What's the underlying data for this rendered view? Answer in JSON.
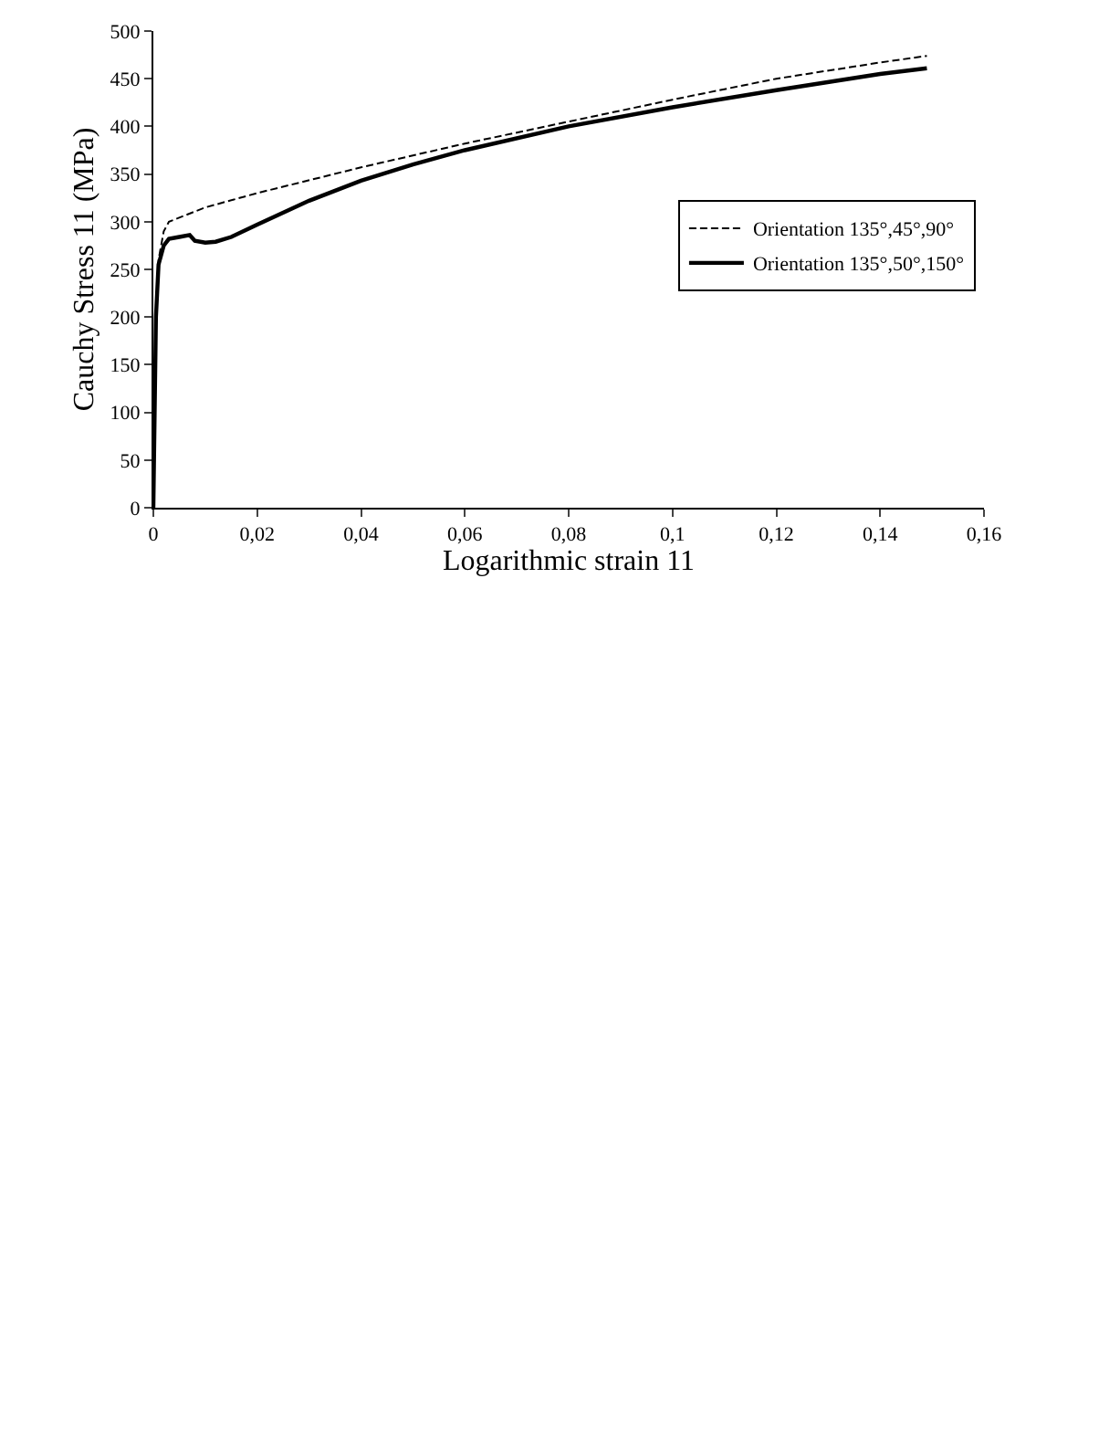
{
  "chart_data": {
    "type": "line",
    "xlabel": "Logarithmic strain 11",
    "ylabel": "Cauchy Stress 11 (MPa)",
    "xlim": [
      0,
      0.16
    ],
    "xticks": [
      0,
      {
        "value": 0.02,
        "label": "0,02"
      },
      {
        "value": 0.04,
        "label": "0,04"
      },
      {
        "value": 0.06,
        "label": "0,06"
      },
      {
        "value": 0.08,
        "label": "0,08"
      },
      {
        "value": 0.1,
        "label": "0,1"
      },
      {
        "value": 0.12,
        "label": "0,12"
      },
      {
        "value": 0.14,
        "label": "0,14"
      },
      {
        "value": 0.16,
        "label": "0,16"
      }
    ],
    "ylim": [
      0,
      500
    ],
    "yticks": [
      0,
      50,
      100,
      150,
      200,
      250,
      300,
      350,
      400,
      450,
      500
    ],
    "legend": "right",
    "marker": "none",
    "series": [
      {
        "name": "Orientation 135°,45°,90°",
        "color": "#000000",
        "line_style": "dashed",
        "x": [
          0,
          0.0005,
          0.001,
          0.002,
          0.003,
          0.01,
          0.02,
          0.04,
          0.06,
          0.08,
          0.1,
          0.12,
          0.14,
          0.149
        ],
        "values": [
          0,
          200,
          260,
          290,
          300,
          315,
          330,
          357,
          382,
          405,
          428,
          450,
          467,
          474
        ]
      },
      {
        "name": "Orientation 135°,50°,150°",
        "color": "#000000",
        "line_style": "solid",
        "x": [
          0,
          0.0005,
          0.001,
          0.002,
          0.003,
          0.005,
          0.007,
          0.008,
          0.01,
          0.012,
          0.015,
          0.02,
          0.03,
          0.04,
          0.05,
          0.06,
          0.08,
          0.1,
          0.12,
          0.14,
          0.149
        ],
        "values": [
          0,
          200,
          255,
          275,
          282,
          284,
          286,
          280,
          278,
          279,
          284,
          297,
          322,
          343,
          360,
          375,
          400,
          420,
          438,
          455,
          461
        ]
      }
    ]
  }
}
